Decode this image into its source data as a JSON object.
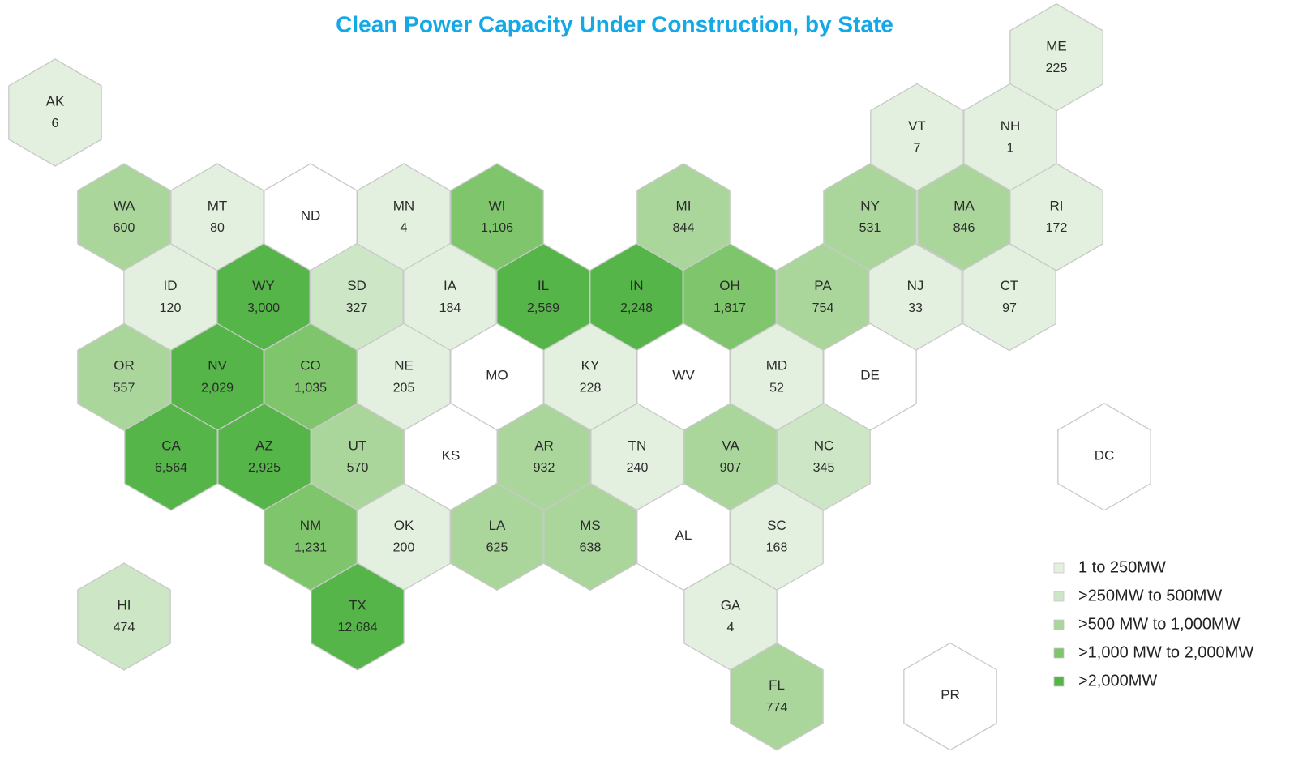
{
  "chart_data": {
    "type": "hexmap",
    "title": "Clean Power Capacity Under Construction, by State",
    "categories": [
      "AK",
      "ME",
      "VT",
      "NH",
      "WA",
      "MT",
      "ND",
      "MN",
      "WI",
      "MI",
      "NY",
      "MA",
      "RI",
      "ID",
      "WY",
      "SD",
      "IA",
      "IL",
      "IN",
      "OH",
      "PA",
      "NJ",
      "CT",
      "OR",
      "NV",
      "CO",
      "NE",
      "MO",
      "KY",
      "WV",
      "MD",
      "DE",
      "CA",
      "AZ",
      "UT",
      "KS",
      "AR",
      "TN",
      "VA",
      "NC",
      "DC",
      "NM",
      "OK",
      "LA",
      "MS",
      "AL",
      "SC",
      "HI",
      "TX",
      "GA",
      "FL",
      "PR"
    ],
    "values": [
      6,
      225,
      7,
      1,
      600,
      80,
      null,
      4,
      1106,
      844,
      531,
      846,
      172,
      120,
      3000,
      327,
      184,
      2569,
      2248,
      1817,
      754,
      33,
      97,
      557,
      2029,
      1035,
      205,
      null,
      228,
      null,
      52,
      null,
      6564,
      2925,
      570,
      null,
      932,
      240,
      907,
      345,
      null,
      1231,
      200,
      625,
      638,
      null,
      168,
      474,
      12684,
      4,
      774,
      null
    ],
    "value_labels": [
      "6",
      "225",
      "7",
      "1",
      "600",
      "80",
      null,
      "4",
      "1,106",
      "844",
      "531",
      "846",
      "172",
      "120",
      "3,000",
      "327",
      "184",
      "2,569",
      "2,248",
      "1,817",
      "754",
      "33",
      "97",
      "557",
      "2,029",
      "1,035",
      "205",
      null,
      "228",
      null,
      "52",
      null,
      "6,564",
      "2,925",
      "570",
      null,
      "932",
      "240",
      "907",
      "345",
      null,
      "1,231",
      "200",
      "625",
      "638",
      null,
      "168",
      "474",
      "12,684",
      "4",
      "774",
      null
    ],
    "colors": [
      "#e4f0df",
      "#e4f0df",
      "#e4f0df",
      "#e4f0df",
      "#aad69c",
      "#e4f0df",
      "#ffffff",
      "#e4f0df",
      "#7ec56b",
      "#aad69c",
      "#aad69c",
      "#aad69c",
      "#e4f0df",
      "#e4f0df",
      "#55b548",
      "#cde6c5",
      "#e4f0df",
      "#55b548",
      "#55b548",
      "#7ec56b",
      "#aad69c",
      "#e4f0df",
      "#e4f0df",
      "#aad69c",
      "#55b548",
      "#7ec56b",
      "#e4f0df",
      "#ffffff",
      "#e4f0df",
      "#ffffff",
      "#e4f0df",
      "#ffffff",
      "#55b548",
      "#55b548",
      "#aad69c",
      "#ffffff",
      "#aad69c",
      "#e4f0df",
      "#aad69c",
      "#cde6c5",
      "#ffffff",
      "#7ec56b",
      "#e4f0df",
      "#aad69c",
      "#aad69c",
      "#ffffff",
      "#e4f0df",
      "#cde6c5",
      "#55b548",
      "#e4f0df",
      "#aad69c",
      "#ffffff"
    ],
    "legend": [
      {
        "label": "1 to 250MW",
        "color": "#e4f0df"
      },
      {
        "label": ">250MW to 500MW",
        "color": "#cde6c5"
      },
      {
        "label": ">500 MW to 1,000MW",
        "color": "#aad69c"
      },
      {
        "label": ">1,000 MW to 2,000MW",
        "color": "#7ec56b"
      },
      {
        "label": ">2,000MW",
        "color": "#55b548"
      }
    ]
  }
}
